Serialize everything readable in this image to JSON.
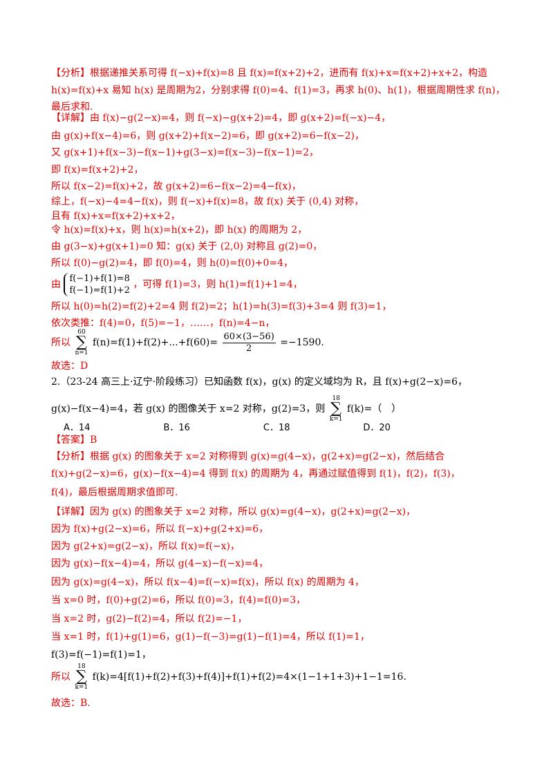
{
  "s1": {
    "l1": "【分析】根据递推关系可得 f(−x)+f(x)=8 且 f(x)=f(x+2)+2，进而有 f(x)+x=f(x+2)+x+2，构造",
    "l2": "h(x)=f(x)+x 易知 h(x) 是周期为2，分别求得 f(0)=4、f(1)=3，再求 h(0)、h(1)，根据周期性求 f(n)，",
    "l3": "最后求和.",
    "l4": "【详解】由 f(x)−g(2−x)=4，则 f(−x)−g(x+2)=4，即 g(x+2)=f(−x)−4，",
    "l5": "由 g(x)+f(x−4)=6，则 g(x+2)+f(x−2)=6，即 g(x+2)=6−f(x−2)，",
    "l6": "又 g(x+1)+f(x−3)−f(x−1)+g(3−x)=f(x−3)−f(x−1)=2，",
    "l7": "即 f(x)=f(x+2)+2，",
    "l8": "所以 f(x−2)=f(x)+2，故 g(x+2)=6−f(x−2)=4−f(x)，",
    "l9": "综上，f(−x)−4=4−f(x)，则 f(−x)+f(x)=8，故 f(x) 关于 (0,4) 对称，",
    "l10": "且有 f(x)+x=f(x+2)+x+2，",
    "l11": "令 h(x)=f(x)+x，则 h(x)=h(x+2)，即 h(x) 的周期为 2，",
    "l12": "由 g(3−x)+g(x+1)=0 知：g(x) 关于 (2,0) 对称且 g(2)=0，",
    "l13": "所以 f(0)−g(2)=4，即 f(0)=4，则 h(0)=f(0)+0=4，",
    "l14a": "由",
    "l14b1": "f(−1)+f(1)=8",
    "l14b2": "f(−1)=f(1)+2",
    "l14c": "，可得 f(1)=3，则 h(1)=f(1)+1=4，",
    "l15": "所以 h(0)=h(2)=f(2)+2=4 则 f(2)=2；h(1)=h(3)=f(3)+3=4 则 f(3)=1，",
    "l16": "依次类推：f(4)=0，f(5)=−1，……，f(n)=4−n，",
    "l17a": "所以",
    "l17top": "60",
    "l17bot": "n=1",
    "l17b": "f(n)=f(1)+f(2)+...+f(60)=",
    "l17num": "60×(3−56)",
    "l17den": "2",
    "l17c": "=−1590.",
    "l18": "故选：D"
  },
  "s2": {
    "q1": "2.（23-24 高三上·辽宁·阶段练习）已知函数 f(x)，g(x) 的定义域均为 R，且 f(x)+g(2−x)=6，",
    "q2a": "g(x)−f(x−4)=4，若 g(x) 的图像关于 x=2 对称，g(2)=3，则",
    "q2top": "18",
    "q2bot": "k=1",
    "q2b": "f(k)=（　）",
    "options": [
      "A．14",
      "B．16",
      "C．18",
      "D．20"
    ],
    "answer": "【答案】B",
    "a1": "【分析】根据 g(x) 的图象关于 x=2 对称得到 g(x)=g(4−x)，g(2+x)=g(2−x)，然后结合",
    "a2": "f(x)+g(2−x)=6，g(x)−f(x−4)=4 得到 f(x) 的周期为 4，再通过赋值得到 f(1)，f(2)，f(3)，",
    "a3": "f(4)，最后根据周期求值即可.",
    "d1": "【详解】因为 g(x) 的图象关于 x=2 对称，所以 g(x)=g(4−x)，g(2+x)=g(2−x)，",
    "d2": "因为 f(x)+g(2−x)=6，所以 f(−x)+g(2+x)=6，",
    "d3": "因为 g(2+x)=g(2−x)，所以 f(x)=f(−x)，",
    "d4": "因为 g(x)−f(x−4)=4，所以 g(4−x)−f(−x)=4，",
    "d5": "因为 g(x)=g(4−x)，所以 f(x−4)=f(−x)=f(x)，所以 f(x) 的周期为 4，",
    "d6": "当 x=0 时，f(0)+g(2)=6，所以 f(0)=3，f(4)=f(0)=3，",
    "d7": "当 x=2 时，g(2)−f(2)=4，所以 f(2)=−1，",
    "d8": "当 x=1 时，f(1)+g(1)=6，g(1)−f(−3)=g(1)−f(1)=4，所以 f(1)=1，",
    "d9": "f(3)=f(−1)=f(1)=1，",
    "d10a": "所以",
    "d10top": "18",
    "d10bot": "k=1",
    "d10b": "f(k)=4[f(1)+f(2)+f(3)+f(4)]+f(1)+f(2)=4×(1−1+1+3)+1−1=16.",
    "d11": "故选：B."
  }
}
